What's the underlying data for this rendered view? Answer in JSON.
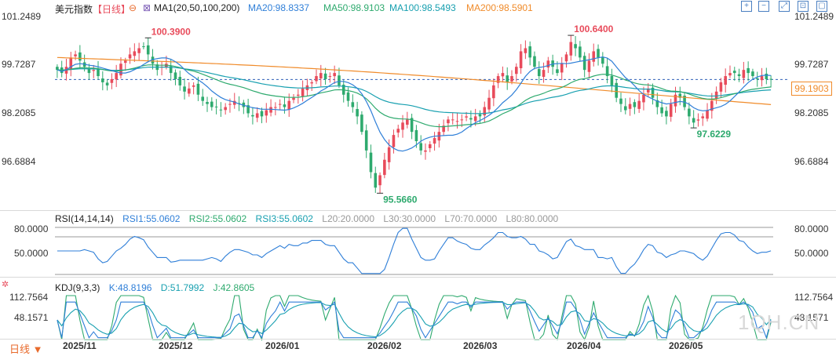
{
  "header": {
    "symbol": "美元指数",
    "period_tag": "【日线】",
    "ma_label": "MA1(20,50,100,200)",
    "ma20": "MA20:98.8337",
    "ma50": "MA50:98.9103",
    "ma100": "MA100:98.5493",
    "ma200": "MA200:98.5901"
  },
  "colors": {
    "up": "#e84b5b",
    "down": "#2eaa6e",
    "ma20": "#2f7fd8",
    "ma50": "#2eaa6e",
    "ma100": "#18a0b0",
    "ma200": "#f08b2a",
    "rsi": "#2f7fd8",
    "kdj_k": "#2f7fd8",
    "kdj_d": "#18a0b0",
    "kdj_j": "#2eaa6e"
  },
  "right_axis": {
    "main_ticks": [
      "101.2489",
      "99.7287",
      "98.2085",
      "96.6884"
    ],
    "current_price": "99.1903"
  },
  "left_axis": {
    "main_ticks": [
      "101.2489",
      "99.7287",
      "98.2085",
      "96.6884"
    ],
    "rsi_ticks": [
      "80.0000",
      "50.0000"
    ],
    "kdj_ticks": [
      "112.7564",
      "48.1571"
    ]
  },
  "annotations": {
    "high1": "100.3900",
    "low1": "95.5660",
    "high2": "100.6400",
    "low2": "97.6229"
  },
  "rsi_header": {
    "title": "RSI(14,14,14)",
    "rsi1": "RSI1:55.0602",
    "rsi2": "RSI2:55.0602",
    "rsi3": "RSI3:55.0602",
    "l20": "L20:20.0000",
    "l30": "L30:30.0000",
    "l70": "L70:70.0000",
    "l80": "L80:80.0000"
  },
  "kdj_header": {
    "title": "KDJ(9,3,3)",
    "k": "K:48.8196",
    "d": "D:51.7992",
    "j": "J:42.8605"
  },
  "x_axis": {
    "ticks": [
      "2025/11",
      "2025/12",
      "2026/01",
      "2026/02",
      "2026/03",
      "2026/04",
      "2026/05"
    ]
  },
  "footer": {
    "period_label": "日线",
    "watermark": "1QH.CN"
  },
  "chart_data": [
    {
      "type": "candlestick",
      "title": "美元指数 日线",
      "y_ticks": [
        101.2489,
        99.7287,
        98.2085,
        96.6884
      ],
      "ylim": [
        95.1,
        101.25
      ],
      "current_price": 99.1903,
      "close_series": [
        99.5,
        99.4,
        99.6,
        99.9,
        100.0,
        99.8,
        99.6,
        99.4,
        99.5,
        99.3,
        99.1,
        99.0,
        99.2,
        99.4,
        99.7,
        99.8,
        100.0,
        100.1,
        100.2,
        100.25,
        100.0,
        99.7,
        99.5,
        99.6,
        99.7,
        99.4,
        99.2,
        99.0,
        98.8,
        98.9,
        99.0,
        98.7,
        98.5,
        98.4,
        98.3,
        98.3,
        98.2,
        98.3,
        98.4,
        98.5,
        98.4,
        98.3,
        98.1,
        98.0,
        98.1,
        98.0,
        98.2,
        98.3,
        98.3,
        98.4,
        98.3,
        98.5,
        98.6,
        98.7,
        98.9,
        99.0,
        99.1,
        99.3,
        99.4,
        99.2,
        99.3,
        99.4,
        99.0,
        98.7,
        98.5,
        98.3,
        98.0,
        97.5,
        96.9,
        96.2,
        95.7,
        96.1,
        96.6,
        97.0,
        97.4,
        97.6,
        97.8,
        97.9,
        97.5,
        97.2,
        96.9,
        96.9,
        97.1,
        97.3,
        97.5,
        97.7,
        97.9,
        97.9,
        97.85,
        97.9,
        98.0,
        97.9,
        98.0,
        98.0,
        98.3,
        98.6,
        99.0,
        99.3,
        99.4,
        99.1,
        99.3,
        99.6,
        100.1,
        100.2,
        99.9,
        99.6,
        99.3,
        99.5,
        99.8,
        99.6,
        99.4,
        99.7,
        100.0,
        100.4,
        100.2,
        99.9,
        99.5,
        99.8,
        100.1,
        99.9,
        99.7,
        99.3,
        99.0,
        98.6,
        98.4,
        98.2,
        98.4,
        98.3,
        98.5,
        98.7,
        98.9,
        98.6,
        98.3,
        98.1,
        98.0,
        98.4,
        98.7,
        98.6,
        98.3,
        98.0,
        97.8,
        97.9,
        98.0,
        98.2,
        98.5,
        98.8,
        99.1,
        99.3,
        99.4,
        99.4,
        99.3,
        99.5,
        99.4,
        99.3,
        99.2,
        99.3,
        99.2,
        99.19
      ],
      "annotations": [
        {
          "label": "100.3900",
          "type": "high"
        },
        {
          "label": "95.5660",
          "type": "low"
        },
        {
          "label": "100.6400",
          "type": "high"
        },
        {
          "label": "97.6229",
          "type": "low"
        }
      ],
      "ma": {
        "MA20": 98.8337,
        "MA50": 98.9103,
        "MA100": 98.5493,
        "MA200": 98.5901
      }
    },
    {
      "type": "line",
      "title": "RSI(14,14,14)",
      "y_ticks": [
        80,
        50
      ],
      "ylim": [
        30,
        85
      ],
      "guides": [
        80,
        70,
        30,
        20
      ],
      "series": [
        {
          "name": "RSI1",
          "last": 55.0602
        }
      ]
    },
    {
      "type": "line",
      "title": "KDJ(9,3,3)",
      "y_ticks": [
        112.7564,
        48.1571
      ],
      "ylim": [
        -5,
        118
      ],
      "series": [
        {
          "name": "K",
          "last": 48.8196
        },
        {
          "name": "D",
          "last": 51.7992
        },
        {
          "name": "J",
          "last": 42.8605
        }
      ]
    }
  ]
}
